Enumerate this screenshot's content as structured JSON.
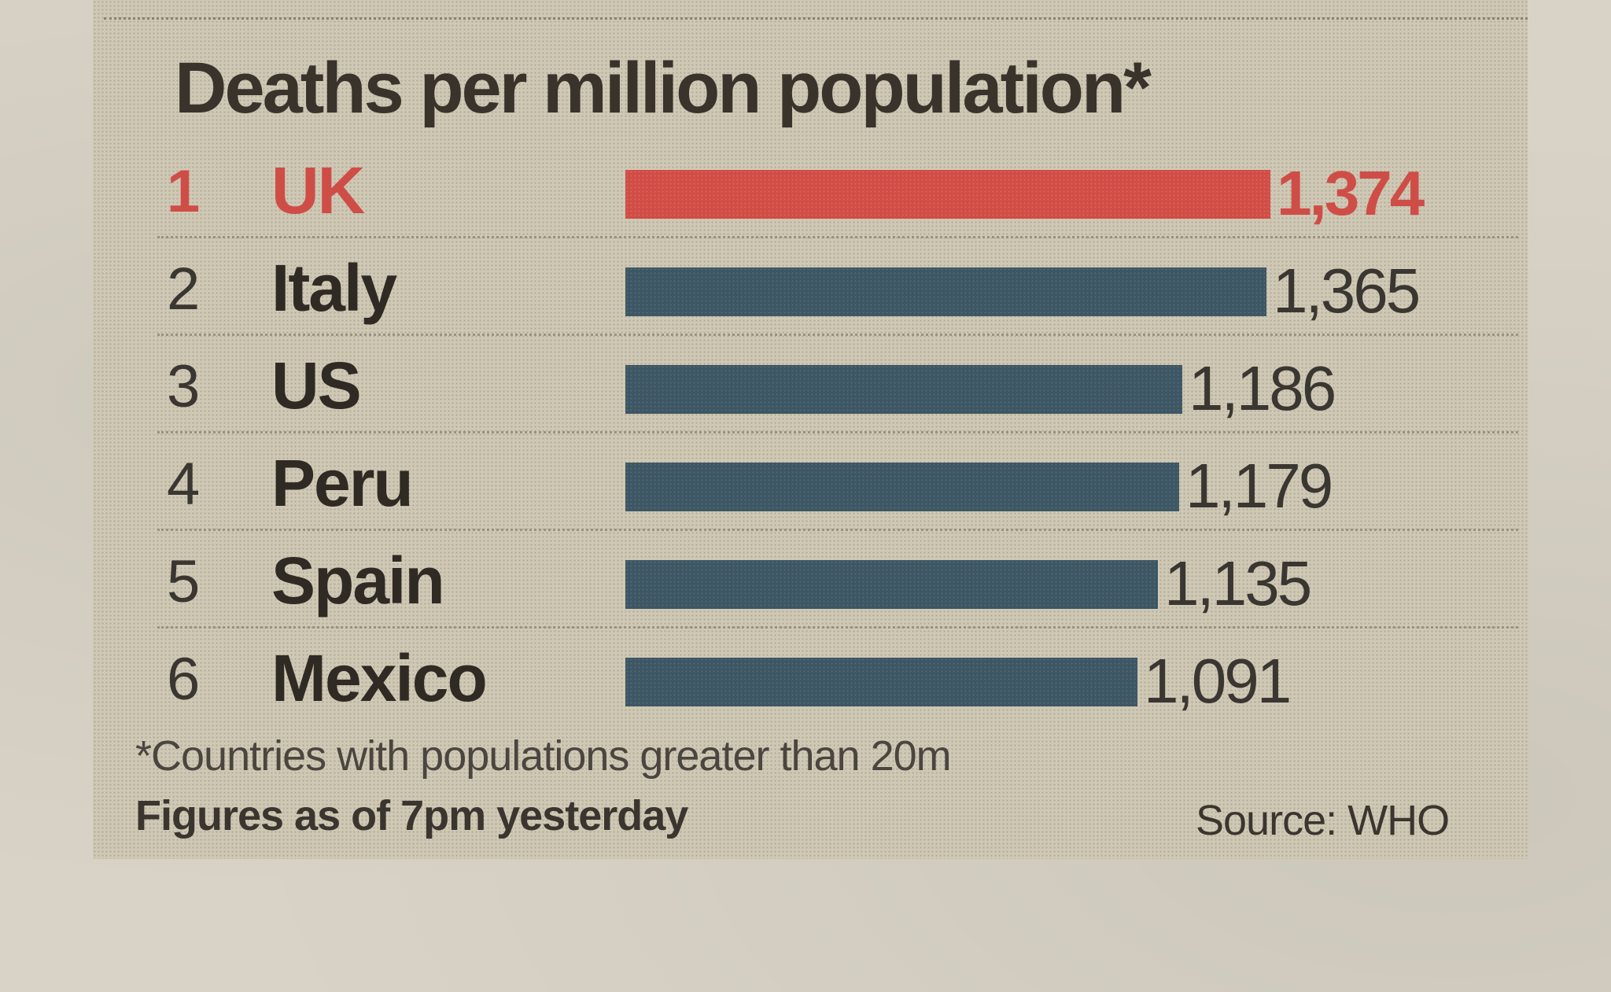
{
  "colors": {
    "highlight": "#d04c45",
    "bar": "#3d5663",
    "text": "#302a24",
    "background": "#cfc8b4"
  },
  "chart_data": {
    "type": "bar",
    "orientation": "horizontal",
    "title": "Deaths per million population*",
    "categories": [
      "UK",
      "Italy",
      "US",
      "Peru",
      "Spain",
      "Mexico"
    ],
    "ranks": [
      "1",
      "2",
      "3",
      "4",
      "5",
      "6"
    ],
    "values": [
      1374,
      1365,
      1186,
      1179,
      1135,
      1091
    ],
    "value_labels": [
      "1,374",
      "1,365",
      "1,186",
      "1,179",
      "1,135",
      "1,091"
    ],
    "highlight_index": 0,
    "xlim": [
      0,
      1374
    ],
    "grid": false,
    "footnote": "*Countries with populations greater than 20m",
    "note": "Figures as of 7pm yesterday",
    "source": "Source: WHO"
  }
}
